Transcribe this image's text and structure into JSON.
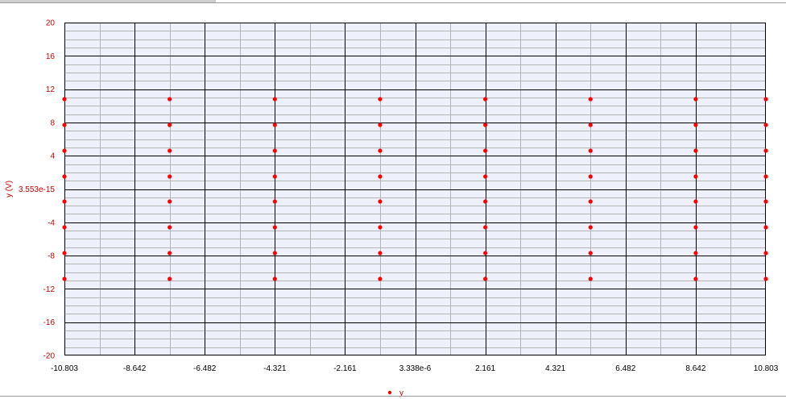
{
  "chart_data": {
    "type": "scatter",
    "ylabel": "y (V)",
    "xlabel": "",
    "title": "",
    "xlim": [
      -10.803,
      10.803
    ],
    "ylim": [
      -20,
      20
    ],
    "x_ticks": [
      "-10.803",
      "-8.642",
      "-6.482",
      "-4.321",
      "-2.161",
      "3.338e-6",
      "2.161",
      "4.321",
      "6.482",
      "8.642",
      "10.803"
    ],
    "y_ticks": [
      "20",
      "16",
      "12",
      "8",
      "4",
      "3.553e-15",
      "-4",
      "-8",
      "-12",
      "-16",
      "-20"
    ],
    "grid": true,
    "legend": "bottom-center",
    "series": [
      {
        "name": "y",
        "color": "#ff0000",
        "x": [
          -10.803,
          -7.562,
          -4.321,
          -1.08,
          2.161,
          5.402,
          8.642,
          10.803
        ],
        "y": [
          10.8,
          7.7,
          4.6,
          1.5,
          -1.5,
          -4.6,
          -7.7,
          -10.8
        ]
      }
    ]
  },
  "colors": {
    "plot_bg": "#eef0fc",
    "major_grid": "#000000",
    "minor_grid": "#b4b4b4",
    "marker": "#ff0000",
    "axis_text": "#cc0000"
  }
}
